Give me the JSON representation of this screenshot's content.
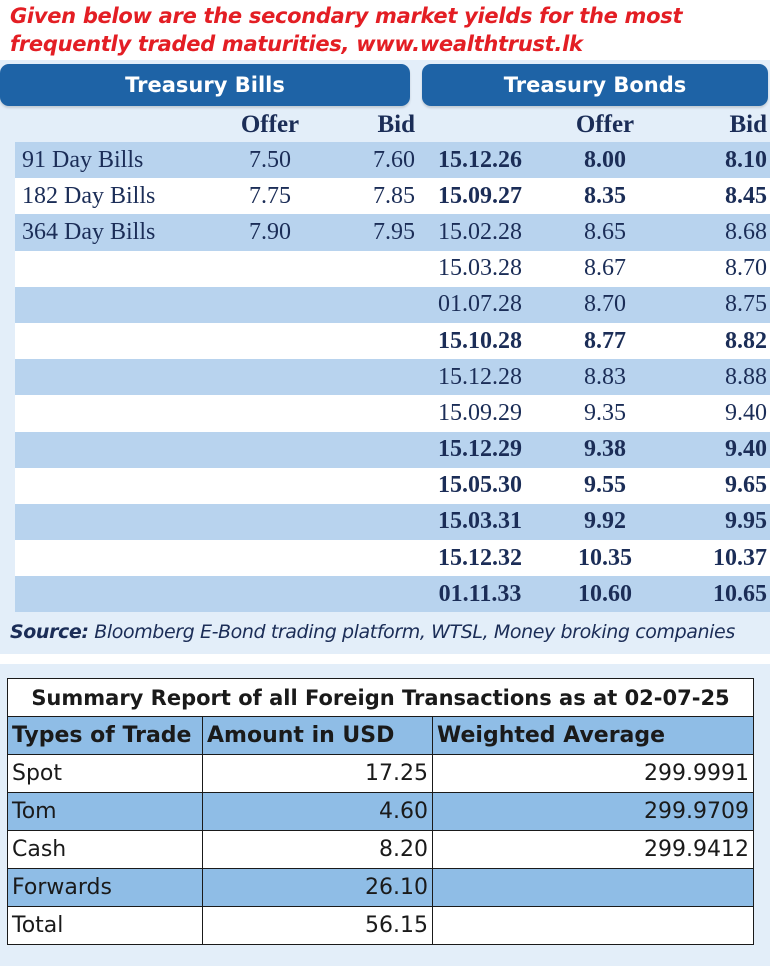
{
  "heading": "Given below are the secondary market yields for the most frequently traded maturities, www.wealthtrust.lk",
  "treasury_bills": {
    "title": "Treasury Bills",
    "offer_label": "Offer",
    "bid_label": "Bid",
    "rows": [
      {
        "name": "91 Day Bills",
        "offer": "7.50",
        "bid": "7.60"
      },
      {
        "name": "182 Day Bills",
        "offer": "7.75",
        "bid": "7.85"
      },
      {
        "name": "364 Day Bills",
        "offer": "7.90",
        "bid": "7.95"
      }
    ]
  },
  "treasury_bonds": {
    "title": "Treasury Bonds",
    "offer_label": "Offer",
    "bid_label": "Bid",
    "rows": [
      {
        "maturity": "15.12.26",
        "offer": "8.00",
        "bid": "8.10",
        "bold": true
      },
      {
        "maturity": "15.09.27",
        "offer": "8.35",
        "bid": "8.45",
        "bold": true
      },
      {
        "maturity": "15.02.28",
        "offer": "8.65",
        "bid": "8.68",
        "bold": false
      },
      {
        "maturity": "15.03.28",
        "offer": "8.67",
        "bid": "8.70",
        "bold": false
      },
      {
        "maturity": "01.07.28",
        "offer": "8.70",
        "bid": "8.75",
        "bold": false
      },
      {
        "maturity": "15.10.28",
        "offer": "8.77",
        "bid": "8.82",
        "bold": true
      },
      {
        "maturity": "15.12.28",
        "offer": "8.83",
        "bid": "8.88",
        "bold": false
      },
      {
        "maturity": "15.09.29",
        "offer": "9.35",
        "bid": "9.40",
        "bold": false
      },
      {
        "maturity": "15.12.29",
        "offer": "9.38",
        "bid": "9.40",
        "bold": true
      },
      {
        "maturity": "15.05.30",
        "offer": "9.55",
        "bid": "9.65",
        "bold": true
      },
      {
        "maturity": "15.03.31",
        "offer": "9.92",
        "bid": "9.95",
        "bold": true
      },
      {
        "maturity": "15.12.32",
        "offer": "10.35",
        "bid": "10.37",
        "bold": true
      },
      {
        "maturity": "01.11.33",
        "offer": "10.60",
        "bid": "10.65",
        "bold": true
      }
    ]
  },
  "source": {
    "label": "Source:",
    "text": " Bloomberg E-Bond trading platform, WTSL, Money broking companies"
  },
  "summary": {
    "title": "Summary Report of all Foreign Transactions as at 02-07-25",
    "headers": [
      "Types of Trade",
      "Amount in USD",
      "Weighted Average"
    ],
    "rows": [
      {
        "type": "Spot",
        "amount": "17.25",
        "avg": "299.9991"
      },
      {
        "type": "Tom",
        "amount": "4.60",
        "avg": "299.9709"
      },
      {
        "type": "Cash",
        "amount": "8.20",
        "avg": "299.9412"
      },
      {
        "type": "Forwards",
        "amount": "26.10",
        "avg": ""
      },
      {
        "type": "Total",
        "amount": "56.15",
        "avg": ""
      }
    ]
  },
  "colors": {
    "heading_red": "#e31e24",
    "header_blue": "#1e63a6",
    "row_shade": "#b8d3ee",
    "summary_shade": "#8fbde6"
  }
}
